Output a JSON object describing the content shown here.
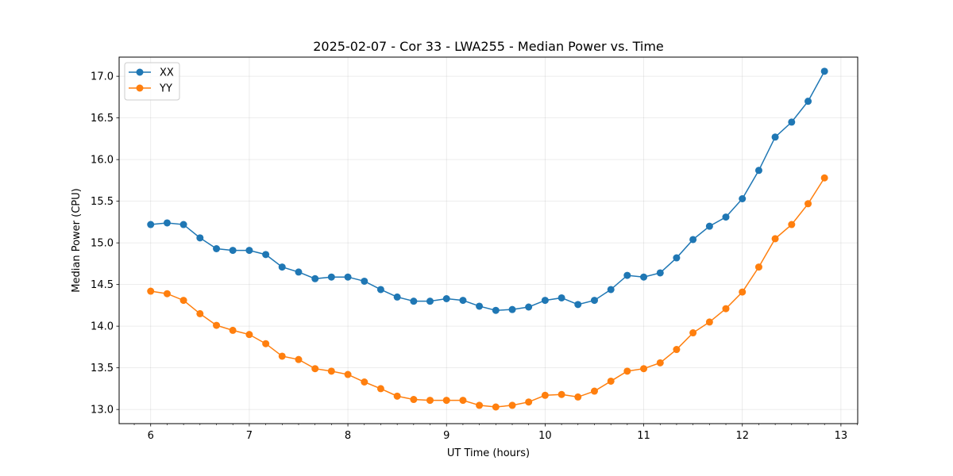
{
  "chart_data": {
    "type": "line",
    "title": "2025-02-07 - Cor 33 - LWA255 - Median Power vs. Time",
    "xlabel": "UT Time (hours)",
    "ylabel": "Median Power (CPU)",
    "xlim": [
      5.68,
      13.17
    ],
    "ylim": [
      12.83,
      17.23
    ],
    "xticks": [
      6,
      7,
      8,
      9,
      10,
      11,
      12,
      13
    ],
    "yticks": [
      13.0,
      13.5,
      14.0,
      14.5,
      15.0,
      15.5,
      16.0,
      16.5,
      17.0
    ],
    "ytick_labels": [
      "13.0",
      "13.5",
      "14.0",
      "14.5",
      "15.0",
      "15.5",
      "16.0",
      "16.5",
      "17.0"
    ],
    "grid": true,
    "legend_position": "top-left",
    "x": [
      6.0,
      6.167,
      6.333,
      6.5,
      6.667,
      6.833,
      7.0,
      7.167,
      7.333,
      7.5,
      7.667,
      7.833,
      8.0,
      8.167,
      8.333,
      8.5,
      8.667,
      8.833,
      9.0,
      9.167,
      9.333,
      9.5,
      9.667,
      9.833,
      10.0,
      10.167,
      10.333,
      10.5,
      10.667,
      10.833,
      11.0,
      11.167,
      11.333,
      11.5,
      11.667,
      11.833,
      12.0,
      12.167,
      12.333,
      12.5,
      12.667,
      12.833
    ],
    "series": [
      {
        "name": "XX",
        "color": "#1f77b4",
        "values": [
          15.22,
          15.24,
          15.22,
          15.06,
          14.93,
          14.91,
          14.91,
          14.86,
          14.71,
          14.65,
          14.57,
          14.59,
          14.59,
          14.54,
          14.44,
          14.35,
          14.3,
          14.3,
          14.33,
          14.31,
          14.24,
          14.19,
          14.2,
          14.23,
          14.31,
          14.34,
          14.26,
          14.31,
          14.44,
          14.61,
          14.59,
          14.64,
          14.82,
          15.04,
          15.2,
          15.31,
          15.53,
          15.87,
          16.27,
          16.45,
          16.7,
          17.06
        ]
      },
      {
        "name": "YY",
        "color": "#ff7f0e",
        "values": [
          14.42,
          14.39,
          14.31,
          14.15,
          14.01,
          13.95,
          13.9,
          13.79,
          13.64,
          13.6,
          13.49,
          13.46,
          13.42,
          13.33,
          13.25,
          13.16,
          13.12,
          13.11,
          13.11,
          13.11,
          13.05,
          13.03,
          13.05,
          13.09,
          13.17,
          13.18,
          13.15,
          13.22,
          13.34,
          13.46,
          13.49,
          13.56,
          13.72,
          13.92,
          14.05,
          14.21,
          14.41,
          14.71,
          15.05,
          15.22,
          15.47,
          15.78
        ]
      }
    ]
  }
}
